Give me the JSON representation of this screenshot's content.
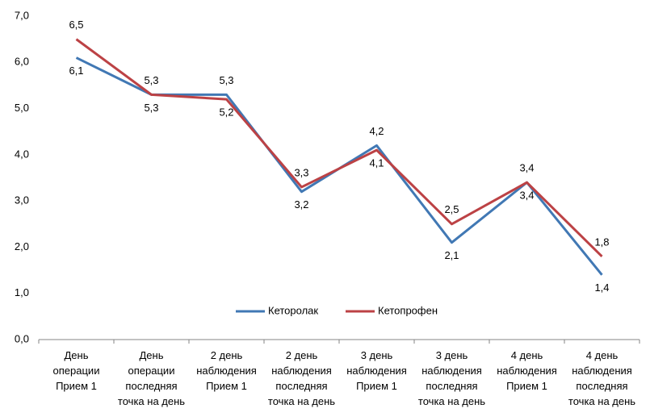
{
  "chart_data": {
    "type": "line",
    "categories": [
      "День\nоперации\nПрием 1",
      "День\nоперации\nпоследняя\nточка на день",
      "2 день\nнаблюдения\nПрием 1",
      "2 день\nнаблюдения\nпоследняя\nточка на день",
      "3 день\nнаблюдения\nПрием 1",
      "3 день\nнаблюдения\nпоследняя\nточка на день",
      "4 день\nнаблюдения\nПрием 1",
      "4 день\nнаблюдения\nпоследняя\nточка на день"
    ],
    "series": [
      {
        "name": "Кеторолак",
        "color": "#4178b4",
        "values": [
          6.1,
          5.3,
          5.3,
          3.2,
          4.2,
          2.1,
          3.4,
          1.4
        ],
        "value_labels": [
          "6,1",
          "5,3",
          "5,3",
          "3,2",
          "4,2",
          "2,1",
          "3,4",
          "1,4"
        ]
      },
      {
        "name": "Кетопрофен",
        "color": "#bc4245",
        "values": [
          6.5,
          5.3,
          5.2,
          3.3,
          4.1,
          2.5,
          3.4,
          1.8
        ],
        "value_labels": [
          "6,5",
          "5,3",
          "5,2",
          "3,3",
          "4,1",
          "2,5",
          "3,4",
          "1,8"
        ]
      }
    ],
    "ylim": [
      0,
      7
    ],
    "yticks": [
      {
        "value": 0,
        "label": "0,0"
      },
      {
        "value": 1,
        "label": "1,0"
      },
      {
        "value": 2,
        "label": "2,0"
      },
      {
        "value": 3,
        "label": "3,0"
      },
      {
        "value": 4,
        "label": "4,0"
      },
      {
        "value": 5,
        "label": "5,0"
      },
      {
        "value": 6,
        "label": "6,0"
      },
      {
        "value": 7,
        "label": "7,0"
      }
    ],
    "legend": "inside-bottom-center"
  }
}
